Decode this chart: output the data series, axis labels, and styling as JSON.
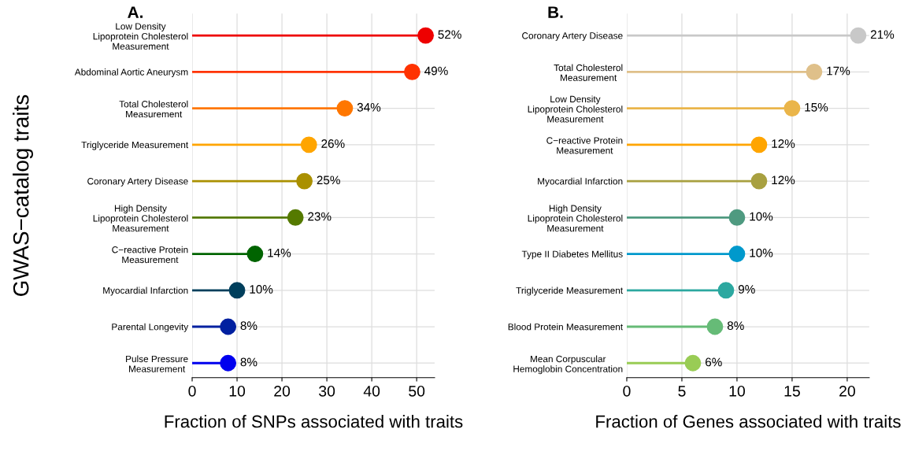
{
  "chart_data": [
    {
      "type": "lollipop",
      "title": "A.",
      "xlabel": "Fraction of SNPs associated with traits",
      "ylabel": "GWAS−catalog traits",
      "orientation": "horizontal",
      "categories": [
        "Low Density\nLipoprotein Cholesterol\nMeasurement",
        "Abdominal Aortic Aneurysm",
        "Total Cholesterol\nMeasurement",
        "Triglyceride Measurement",
        "Coronary Artery Disease",
        "High Density\nLipoprotein Cholesterol\nMeasurement",
        "C−reactive Protein\nMeasurement",
        "Myocardial Infarction",
        "Parental Longevity",
        "Pulse Pressure\nMeasurement"
      ],
      "values": [
        52,
        49,
        34,
        26,
        25,
        23,
        14,
        10,
        8,
        8
      ],
      "value_labels": [
        "52%",
        "49%",
        "34%",
        "26%",
        "25%",
        "23%",
        "14%",
        "10%",
        "8%",
        "8%"
      ],
      "colors": [
        "#ee0000",
        "#ff3300",
        "#ff7700",
        "#ffa500",
        "#aa9000",
        "#557a00",
        "#006400",
        "#003f5c",
        "#0020a0",
        "#0000ee"
      ],
      "xlim": [
        0,
        54
      ],
      "xticks": [
        0,
        10,
        20,
        30,
        40,
        50
      ],
      "grid": true,
      "marker": "circle"
    },
    {
      "type": "lollipop",
      "title": "B.",
      "xlabel": "Fraction of Genes associated with traits",
      "orientation": "horizontal",
      "categories": [
        "Coronary Artery Disease",
        "Total Cholesterol\nMeasurement",
        "Low Density\nLipoprotein Cholesterol\nMeasurement",
        "C−reactive Protein\nMeasurement",
        "Myocardial Infarction",
        "High Density\nLipoprotein Cholesterol\nMeasurement",
        "Type II Diabetes Mellitus",
        "Triglyceride Measurement",
        "Blood Protein Measurement",
        "Mean Corpuscular\nHemoglobin Concentration"
      ],
      "values": [
        21,
        17,
        15,
        12,
        12,
        10,
        10,
        9,
        8,
        6
      ],
      "value_labels": [
        "21%",
        "17%",
        "15%",
        "12%",
        "12%",
        "10%",
        "10%",
        "9%",
        "8%",
        "6%"
      ],
      "colors": [
        "#c8c8c8",
        "#dfc08a",
        "#eab54a",
        "#ffa500",
        "#a8a040",
        "#4f9a80",
        "#0099cc",
        "#2ca8a0",
        "#66bb77",
        "#99cc55"
      ],
      "xlim": [
        0,
        22
      ],
      "xticks": [
        0,
        5,
        10,
        15,
        20
      ],
      "grid": true,
      "marker": "circle"
    }
  ]
}
